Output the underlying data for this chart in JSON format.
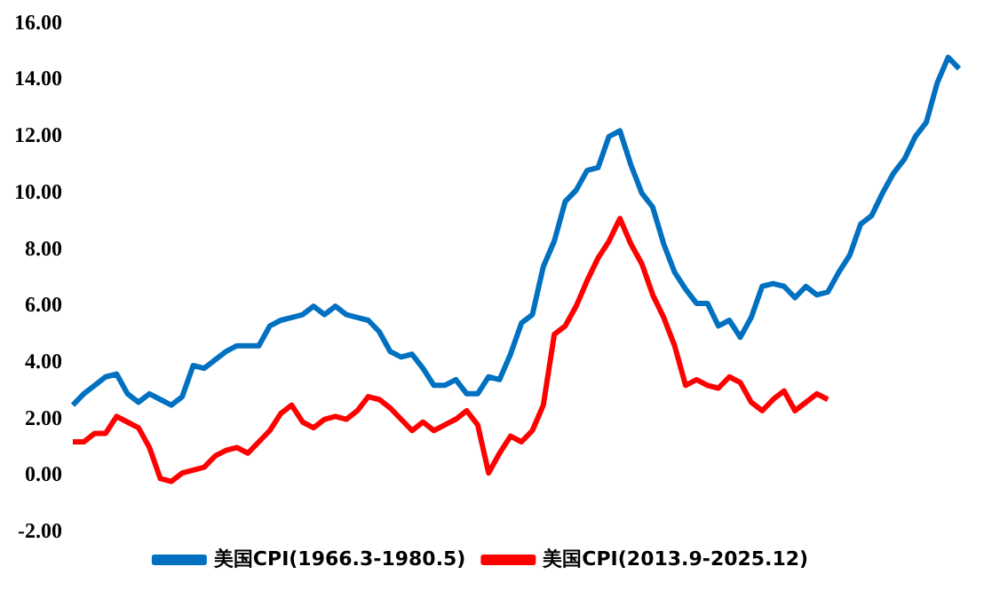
{
  "chart_data": {
    "type": "line",
    "categories": [
      null,
      null,
      null,
      null,
      null,
      null,
      null,
      null,
      null,
      null,
      null,
      null,
      null,
      null,
      null,
      null,
      null,
      null,
      null,
      null,
      null,
      null,
      null,
      null,
      null,
      null,
      null,
      null,
      null,
      null,
      null,
      null,
      null,
      null,
      null,
      null,
      null,
      null,
      null,
      null,
      null,
      null,
      null,
      null,
      null,
      null,
      null,
      null,
      null,
      null,
      null,
      null,
      null,
      null,
      null,
      null,
      null,
      null,
      null,
      null,
      null,
      null,
      null,
      null,
      null,
      null,
      null,
      null,
      null,
      null,
      null,
      null,
      null,
      null,
      null,
      null,
      null,
      null,
      null,
      null,
      null,
      null
    ],
    "series": [
      {
        "name": "美国CPI(1966.3-1980.5)",
        "color": "#0070c0",
        "values": [
          2.5,
          2.9,
          3.2,
          3.5,
          3.6,
          2.9,
          2.6,
          2.9,
          2.7,
          2.5,
          2.8,
          3.9,
          3.8,
          4.1,
          4.4,
          4.6,
          4.6,
          4.6,
          5.3,
          5.5,
          5.6,
          5.7,
          6.0,
          5.7,
          6.0,
          5.7,
          5.6,
          5.5,
          5.1,
          4.4,
          4.2,
          4.3,
          3.8,
          3.2,
          3.2,
          3.4,
          2.9,
          2.9,
          3.5,
          3.4,
          4.3,
          5.4,
          5.7,
          7.4,
          8.3,
          9.7,
          10.1,
          10.8,
          10.9,
          12.0,
          12.2,
          11.0,
          10.0,
          9.5,
          8.2,
          7.2,
          6.6,
          6.1,
          6.1,
          5.3,
          5.5,
          4.9,
          5.6,
          6.7,
          6.8,
          6.7,
          6.3,
          6.7,
          6.4,
          6.5,
          7.2,
          7.8,
          8.9,
          9.2,
          10.0,
          10.7,
          11.2,
          12.0,
          12.5,
          13.9,
          14.8,
          14.4
        ]
      },
      {
        "name": "美国CPI(2013.9-2025.12)",
        "color": "#ff0000",
        "values": [
          1.2,
          1.2,
          1.5,
          1.5,
          2.1,
          1.9,
          1.7,
          1.0,
          -0.1,
          -0.2,
          0.1,
          0.2,
          0.3,
          0.7,
          0.9,
          1.0,
          0.8,
          1.2,
          1.6,
          2.2,
          2.5,
          1.9,
          1.7,
          2.0,
          2.1,
          2.0,
          2.3,
          2.8,
          2.7,
          2.4,
          2.0,
          1.6,
          1.9,
          1.6,
          1.8,
          2.0,
          2.3,
          1.8,
          0.1,
          0.8,
          1.4,
          1.2,
          1.6,
          2.5,
          5.0,
          5.3,
          6.0,
          6.9,
          7.7,
          8.3,
          9.1,
          8.2,
          7.5,
          6.4,
          5.6,
          4.6,
          3.2,
          3.4,
          3.2,
          3.1,
          3.5,
          3.3,
          2.6,
          2.3,
          2.7,
          3.0,
          2.3,
          2.6,
          2.9,
          2.7,
          null,
          null,
          null,
          null,
          null,
          null,
          null,
          null,
          null,
          null,
          null,
          null
        ]
      }
    ],
    "ylim": [
      -2,
      16
    ],
    "yticks": [
      {
        "value": -2,
        "label": "-2.00"
      },
      {
        "value": 0,
        "label": "0.00"
      },
      {
        "value": 2,
        "label": "2.00"
      },
      {
        "value": 4,
        "label": "4.00"
      },
      {
        "value": 6,
        "label": "6.00"
      },
      {
        "value": 8,
        "label": "8.00"
      },
      {
        "value": 10,
        "label": "10.00"
      },
      {
        "value": 12,
        "label": "12.00"
      },
      {
        "value": 14,
        "label": "14.00"
      },
      {
        "value": 16,
        "label": "16.00"
      }
    ],
    "tick_labels": "y",
    "grid": false,
    "legend": "bottom",
    "marker": "none",
    "line_style": "solid"
  }
}
